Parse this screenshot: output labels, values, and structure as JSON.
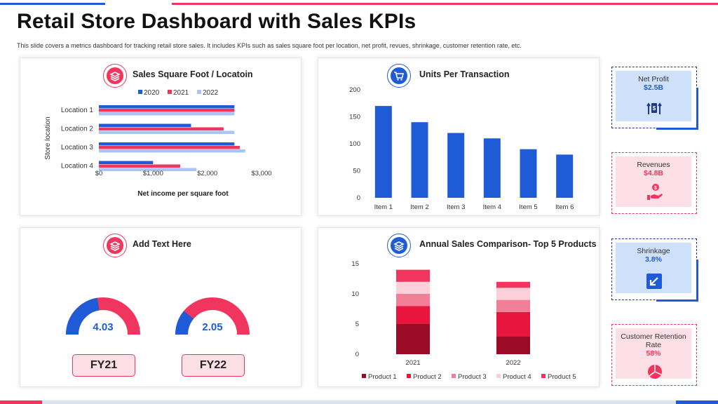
{
  "page": {
    "title": "Retail Store Dashboard with Sales KPIs",
    "subtitle": "This slide covers a metrics dashboard for tracking retail store sales. It includes KPIs such as sales square foot per location, net profit, revues, shrinkage, customer retention rate, etc."
  },
  "panels": {
    "sales_sqft": {
      "title": "Sales Square Foot / Locatoin",
      "icon": "bar-chart-icon"
    },
    "units": {
      "title": "Units Per Transaction",
      "icon": "shopping-cart-icon"
    },
    "gauges": {
      "title": "Add Text Here",
      "icon": "layers-icon"
    },
    "annual": {
      "title": "Annual Sales Comparison- Top 5 Products",
      "icon": "layers-icon"
    }
  },
  "kpis": [
    {
      "label": "Net Profit",
      "value": "$2.5B",
      "icon": "money-up-icon",
      "style": "blue"
    },
    {
      "label": "Revenues",
      "value": "$4.8B",
      "icon": "hand-money-icon",
      "style": "red"
    },
    {
      "label": "Shrinkage",
      "value": "3.8%",
      "icon": "arrow-down-left-icon",
      "style": "blue"
    },
    {
      "label": "Customer Retention Rate",
      "value": "58%",
      "icon": "pie-icon",
      "style": "red"
    }
  ],
  "gauges": [
    {
      "value": "4.03",
      "fraction": 0.45,
      "label": "FY21"
    },
    {
      "value": "2.05",
      "fraction": 0.22,
      "label": "FY22"
    }
  ],
  "colors": {
    "blue": "#1f5bd6",
    "red": "#f0365e",
    "lightblue": "#a9c4f5"
  },
  "chart_data": [
    {
      "type": "bar",
      "orientation": "horizontal",
      "categories": [
        "Location 1",
        "Location 2",
        "Location 3",
        "Location 4"
      ],
      "series": [
        {
          "name": "2020",
          "values": [
            2500,
            1700,
            2500,
            1000
          ],
          "color": "#1f5bd6"
        },
        {
          "name": "2021",
          "values": [
            2500,
            2300,
            2600,
            1500
          ],
          "color": "#f0365e"
        },
        {
          "name": "2022",
          "values": [
            2500,
            2500,
            2700,
            1800
          ],
          "color": "#a9c4f5"
        }
      ],
      "xticks": [
        "$0",
        "$1,000",
        "$2,000",
        "$3,000"
      ],
      "xlim": [
        0,
        3000
      ],
      "xlabel": "Net income per square foot",
      "ylabel": "Store location",
      "legend": "top"
    },
    {
      "type": "bar",
      "categories": [
        "Item 1",
        "Item 2",
        "Item 3",
        "Item 4",
        "Item 5",
        "Item 6"
      ],
      "values": [
        170,
        140,
        120,
        110,
        90,
        80
      ],
      "yticks": [
        "0",
        "50",
        "100",
        "150",
        "200"
      ],
      "ylim": [
        0,
        200
      ],
      "color": "#1f5bd6"
    },
    {
      "type": "bar",
      "stacked": true,
      "categories": [
        "2021",
        "2022"
      ],
      "series": [
        {
          "name": "Product 1",
          "values": [
            5,
            3
          ],
          "color": "#9b0a26"
        },
        {
          "name": "Product 2",
          "values": [
            3,
            4
          ],
          "color": "#e8163f"
        },
        {
          "name": "Product 3",
          "values": [
            2,
            2
          ],
          "color": "#f27e97"
        },
        {
          "name": "Product 4",
          "values": [
            2,
            2
          ],
          "color": "#fbd0da"
        },
        {
          "name": "Product 5",
          "values": [
            2,
            1
          ],
          "color": "#f0365e"
        }
      ],
      "yticks": [
        "0",
        "5",
        "10",
        "15"
      ],
      "ylim": [
        0,
        15
      ],
      "legend": "bottom"
    }
  ]
}
